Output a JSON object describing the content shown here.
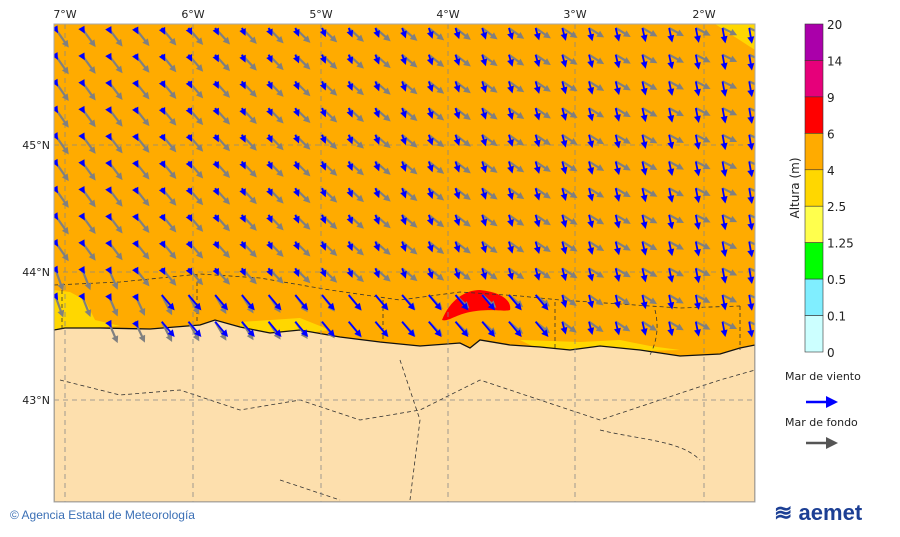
{
  "map": {
    "lon_labels": [
      "7°W",
      "6°W",
      "5°W",
      "4°W",
      "3°W",
      "2°W"
    ],
    "lat_labels": [
      "45°N",
      "44°N",
      "43°N"
    ],
    "colors": {
      "sea_dominant": "#FFAB00",
      "land": "#FDDFAD",
      "max_area": "#FF0000",
      "coast_band": "#FFD700"
    }
  },
  "colorbar": {
    "title": "Altura (m)",
    "ticks": [
      "20",
      "14",
      "9",
      "6",
      "4",
      "2.5",
      "1.25",
      "0.5",
      "0.1",
      "0"
    ],
    "colors": [
      "#AA00AA",
      "#E6007A",
      "#FF0000",
      "#FFAB00",
      "#FFD700",
      "#FFFF4D",
      "#00FF00",
      "#80EEFF",
      "#CCFFFF"
    ]
  },
  "legend": {
    "wind_sea": {
      "label": "Mar de viento",
      "color": "#0000FF"
    },
    "swell": {
      "label": "Mar de fondo",
      "color": "#555555"
    }
  },
  "footer": {
    "copyright": "© Agencia Estatal de Meteorología",
    "logo": "aemet"
  }
}
